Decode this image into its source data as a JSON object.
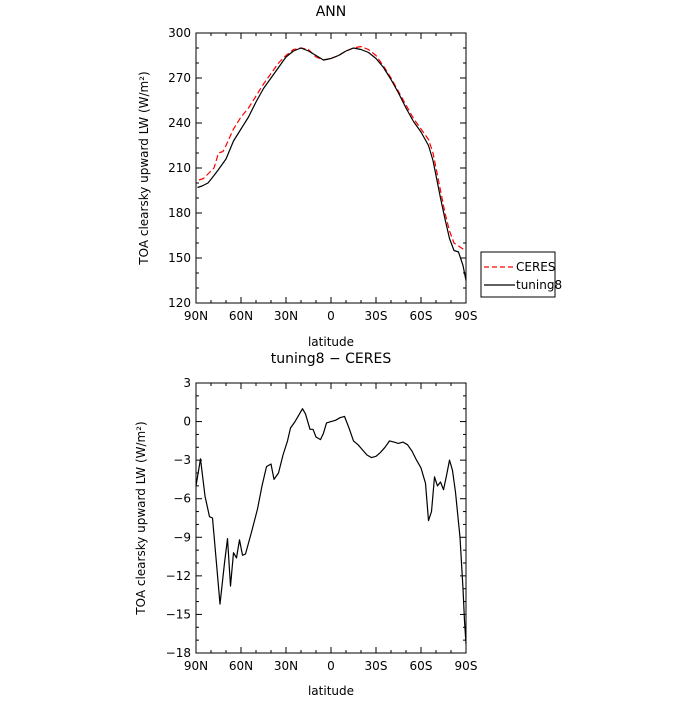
{
  "chart_data": [
    {
      "type": "line",
      "title": "ANN",
      "xlabel": "latitude",
      "ylabel": "TOA clearsky upward LW (W/m²)",
      "ylim": [
        120,
        300
      ],
      "xlim": [
        90,
        -90
      ],
      "yticks": [
        120,
        150,
        180,
        210,
        240,
        270,
        300
      ],
      "ytick_labels": [
        "120",
        "150",
        "180",
        "210",
        "240",
        "270",
        "300"
      ],
      "xticks": [
        90,
        60,
        30,
        0,
        -30,
        -60,
        -90
      ],
      "xtick_labels": [
        "90N",
        "60N",
        "30N",
        "0",
        "30S",
        "60S",
        "90S"
      ],
      "grid": false,
      "legend_position": "right, outside plot",
      "series": [
        {
          "name": "CERES",
          "color": "#ff0000",
          "style": "dashed",
          "points": [
            [
              88,
              202
            ],
            [
              85,
              203
            ],
            [
              82,
              206
            ],
            [
              78,
              210
            ],
            [
              75,
              220
            ],
            [
              72,
              221
            ],
            [
              70,
              225
            ],
            [
              65,
              236
            ],
            [
              60,
              244
            ],
            [
              55,
              250
            ],
            [
              50,
              258
            ],
            [
              45,
              266
            ],
            [
              40,
              273
            ],
            [
              35,
              280
            ],
            [
              30,
              285
            ],
            [
              25,
              289
            ],
            [
              20,
              290
            ],
            [
              15,
              289
            ],
            [
              10,
              284
            ],
            [
              5,
              282
            ],
            [
              0,
              283
            ],
            [
              -5,
              285
            ],
            [
              -10,
              288
            ],
            [
              -15,
              290
            ],
            [
              -20,
              291
            ],
            [
              -25,
              289
            ],
            [
              -30,
              285
            ],
            [
              -35,
              278
            ],
            [
              -40,
              270
            ],
            [
              -45,
              261
            ],
            [
              -50,
              252
            ],
            [
              -55,
              243
            ],
            [
              -60,
              236
            ],
            [
              -65,
              229
            ],
            [
              -68,
              220
            ],
            [
              -70,
              210
            ],
            [
              -73,
              195
            ],
            [
              -76,
              180
            ],
            [
              -79,
              168
            ],
            [
              -82,
              160
            ],
            [
              -85,
              158
            ],
            [
              -88,
              156
            ],
            [
              -89,
              154
            ]
          ]
        },
        {
          "name": "tuning8",
          "color": "#000000",
          "style": "solid",
          "points": [
            [
              89,
              197
            ],
            [
              86,
              198
            ],
            [
              82,
              200
            ],
            [
              78,
              205
            ],
            [
              75,
              209
            ],
            [
              70,
              216
            ],
            [
              65,
              228
            ],
            [
              60,
              236
            ],
            [
              55,
              244
            ],
            [
              50,
              254
            ],
            [
              45,
              263
            ],
            [
              40,
              270
            ],
            [
              35,
              277
            ],
            [
              30,
              284
            ],
            [
              25,
              288
            ],
            [
              20,
              290
            ],
            [
              15,
              288
            ],
            [
              10,
              285
            ],
            [
              5,
              282
            ],
            [
              0,
              283
            ],
            [
              -5,
              285
            ],
            [
              -10,
              288
            ],
            [
              -15,
              290
            ],
            [
              -20,
              289
            ],
            [
              -25,
              287
            ],
            [
              -30,
              283
            ],
            [
              -35,
              277
            ],
            [
              -40,
              269
            ],
            [
              -45,
              260
            ],
            [
              -50,
              250
            ],
            [
              -55,
              241
            ],
            [
              -60,
              234
            ],
            [
              -65,
              225
            ],
            [
              -68,
              215
            ],
            [
              -70,
              205
            ],
            [
              -73,
              190
            ],
            [
              -76,
              176
            ],
            [
              -79,
              163
            ],
            [
              -82,
              155
            ],
            [
              -85,
              154
            ],
            [
              -88,
              145
            ],
            [
              -90,
              135
            ]
          ]
        }
      ]
    },
    {
      "type": "line",
      "title": "tuning8 − CERES",
      "xlabel": "latitude",
      "ylabel": "TOA clearsky upward LW (W/m²)",
      "ylim": [
        -18,
        3
      ],
      "xlim": [
        90,
        -90
      ],
      "yticks": [
        -18,
        -15,
        -12,
        -9,
        -6,
        -3,
        0,
        3
      ],
      "ytick_labels": [
        "−18",
        "−15",
        "−12",
        "−9",
        "−6",
        "−3",
        "0",
        "3"
      ],
      "xticks": [
        90,
        60,
        30,
        0,
        -30,
        -60,
        -90
      ],
      "xtick_labels": [
        "90N",
        "60N",
        "30N",
        "0",
        "30S",
        "60S",
        "90S"
      ],
      "grid": false,
      "series": [
        {
          "color": "#000000",
          "style": "solid",
          "points": [
            [
              90,
              -5
            ],
            [
              87,
              -2.9
            ],
            [
              84,
              -5.8
            ],
            [
              81,
              -7.4
            ],
            [
              79,
              -7.5
            ],
            [
              76,
              -11.5
            ],
            [
              74,
              -14.2
            ],
            [
              71,
              -11
            ],
            [
              69,
              -9.1
            ],
            [
              67,
              -12.8
            ],
            [
              65,
              -10.2
            ],
            [
              63,
              -10.6
            ],
            [
              61,
              -9.2
            ],
            [
              59,
              -10.4
            ],
            [
              57,
              -10.3
            ],
            [
              53,
              -8.6
            ],
            [
              49,
              -6.8
            ],
            [
              46,
              -5
            ],
            [
              43,
              -3.5
            ],
            [
              40,
              -3.3
            ],
            [
              38,
              -4.5
            ],
            [
              35,
              -4
            ],
            [
              32,
              -2.6
            ],
            [
              29,
              -1.5
            ],
            [
              27,
              -0.5
            ],
            [
              24,
              0
            ],
            [
              21,
              0.6
            ],
            [
              19,
              1
            ],
            [
              17,
              0.6
            ],
            [
              14,
              -0.6
            ],
            [
              12,
              -0.6
            ],
            [
              10,
              -1.2
            ],
            [
              7,
              -1.4
            ],
            [
              5,
              -0.9
            ],
            [
              3,
              -0.1
            ],
            [
              0,
              0
            ],
            [
              -3,
              0.1
            ],
            [
              -6,
              0.3
            ],
            [
              -9,
              0.4
            ],
            [
              -12,
              -0.5
            ],
            [
              -15,
              -1.5
            ],
            [
              -18,
              -1.8
            ],
            [
              -21,
              -2.2
            ],
            [
              -24,
              -2.6
            ],
            [
              -27,
              -2.8
            ],
            [
              -30,
              -2.7
            ],
            [
              -33,
              -2.4
            ],
            [
              -36,
              -2
            ],
            [
              -39,
              -1.5
            ],
            [
              -42,
              -1.6
            ],
            [
              -45,
              -1.7
            ],
            [
              -48,
              -1.6
            ],
            [
              -51,
              -1.8
            ],
            [
              -54,
              -2.3
            ],
            [
              -57,
              -3
            ],
            [
              -60,
              -3.6
            ],
            [
              -63,
              -4.8
            ],
            [
              -65,
              -7.7
            ],
            [
              -67,
              -7
            ],
            [
              -69,
              -4.3
            ],
            [
              -71,
              -5
            ],
            [
              -73,
              -4.7
            ],
            [
              -75,
              -5.3
            ],
            [
              -77,
              -4.2
            ],
            [
              -79,
              -3
            ],
            [
              -81,
              -3.8
            ],
            [
              -83,
              -5.5
            ],
            [
              -86,
              -9
            ],
            [
              -88,
              -13
            ],
            [
              -89,
              -15.5
            ],
            [
              -90,
              -17.3
            ]
          ]
        }
      ]
    }
  ]
}
